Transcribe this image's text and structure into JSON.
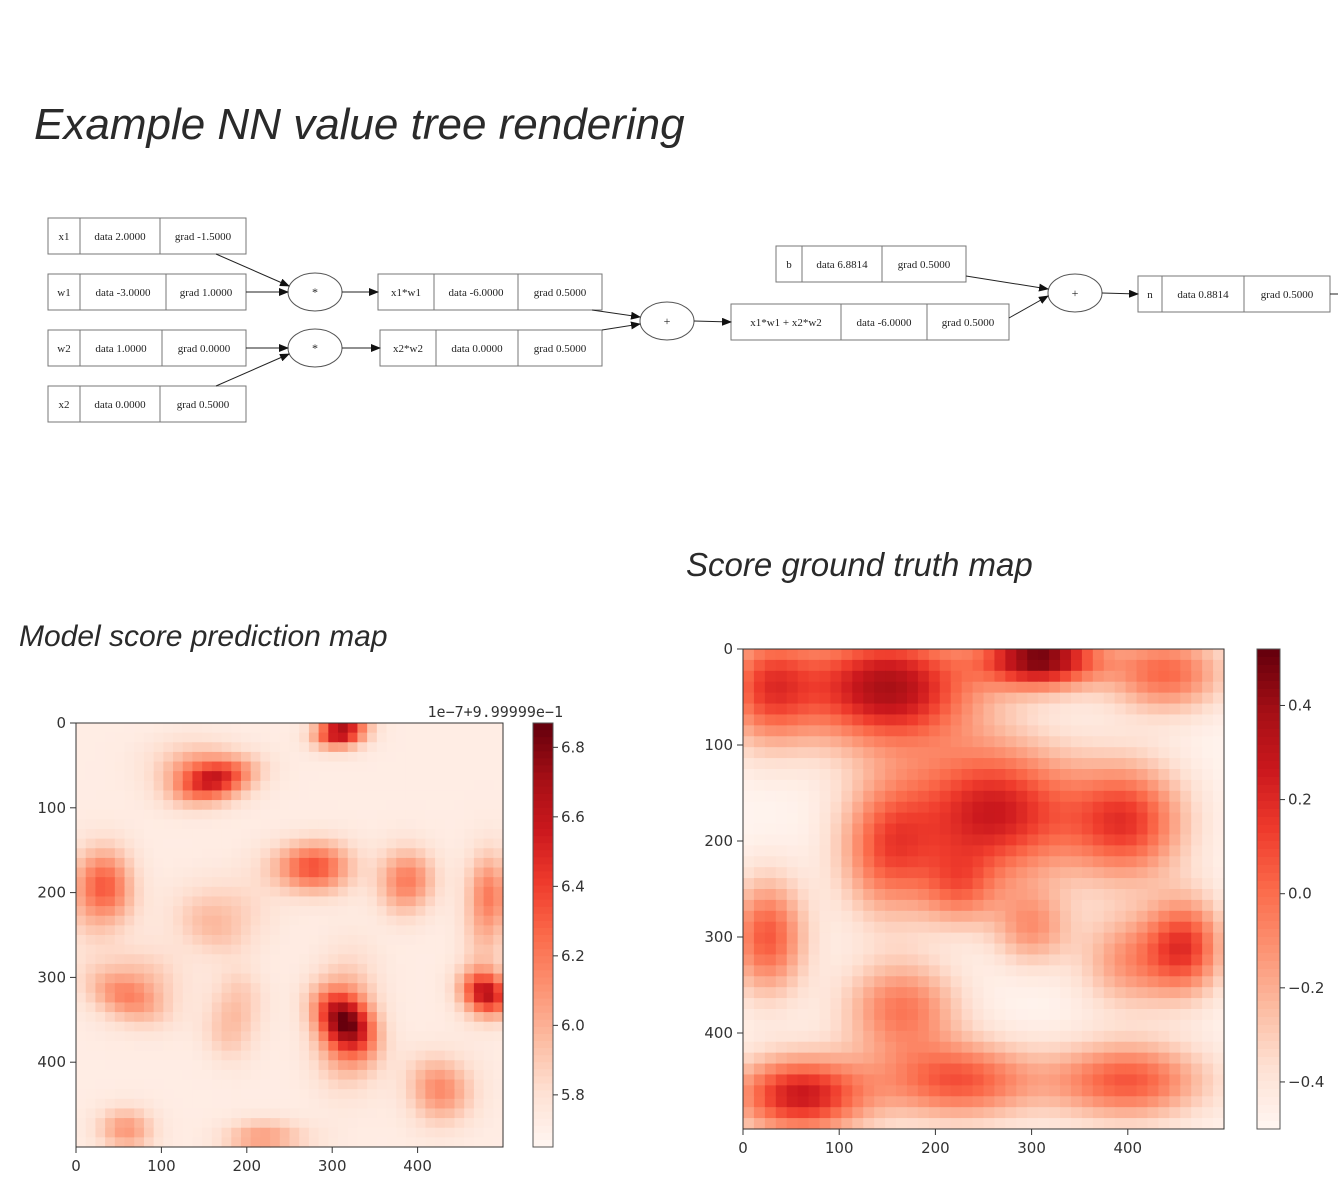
{
  "titles": {
    "tree": "Example NN value tree rendering",
    "prediction": "Model score prediction map",
    "ground_truth": "Score ground truth map"
  },
  "graph": {
    "nodes": [
      {
        "id": "x1",
        "label": "x1",
        "data": "data 2.0000",
        "grad": "grad -1.5000"
      },
      {
        "id": "w1",
        "label": "w1",
        "data": "data -3.0000",
        "grad": "grad 1.0000"
      },
      {
        "id": "w2",
        "label": "w2",
        "data": "data 1.0000",
        "grad": "grad 0.0000"
      },
      {
        "id": "x2",
        "label": "x2",
        "data": "data 0.0000",
        "grad": "grad 0.5000"
      },
      {
        "id": "x1w1",
        "label": "x1*w1",
        "data": "data -6.0000",
        "grad": "grad 0.5000"
      },
      {
        "id": "x2w2",
        "label": "x2*w2",
        "data": "data 0.0000",
        "grad": "grad 0.5000"
      },
      {
        "id": "sum",
        "label": "x1*w1 + x2*w2",
        "data": "data -6.0000",
        "grad": "grad 0.5000"
      },
      {
        "id": "b",
        "label": "b",
        "data": "data 6.8814",
        "grad": "grad 0.5000"
      },
      {
        "id": "n",
        "label": "n",
        "data": "data 0.8814",
        "grad": "grad 0.5000"
      }
    ],
    "ops": [
      {
        "id": "mul1",
        "symbol": "*"
      },
      {
        "id": "mul2",
        "symbol": "*"
      },
      {
        "id": "add1",
        "symbol": "+"
      },
      {
        "id": "add2",
        "symbol": "+"
      }
    ]
  },
  "chart_data": [
    {
      "type": "heatmap",
      "title": "Model score prediction map",
      "colormap": "Reds",
      "x_ticks": [
        "0",
        "100",
        "200",
        "300",
        "400"
      ],
      "y_ticks": [
        "0",
        "100",
        "200",
        "300",
        "400"
      ],
      "xlim": [
        0,
        500
      ],
      "ylim": [
        0,
        500
      ],
      "offset_text": "1e−7+9.99999e−1",
      "colorbar_ticks": [
        "5.8",
        "6.0",
        "6.2",
        "6.4",
        "6.6",
        "6.8"
      ],
      "colorbar_range": [
        5.65,
        6.87
      ]
    },
    {
      "type": "heatmap",
      "title": "Score ground truth map",
      "colormap": "Reds",
      "x_ticks": [
        "0",
        "100",
        "200",
        "300",
        "400"
      ],
      "y_ticks": [
        "0",
        "100",
        "200",
        "300",
        "400"
      ],
      "xlim": [
        0,
        500
      ],
      "ylim": [
        0,
        500
      ],
      "colorbar_ticks": [
        "−0.4",
        "−0.2",
        "0.0",
        "0.2",
        "0.4"
      ],
      "colorbar_range": [
        -0.5,
        0.52
      ]
    }
  ]
}
